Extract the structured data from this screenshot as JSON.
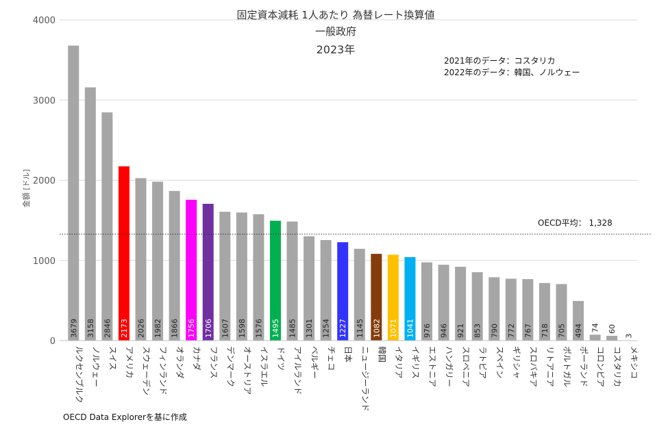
{
  "header": {
    "title_line1": "固定資本減耗 1人あたり 為替レート換算値",
    "title_line2": "一般政府",
    "title_line3": "2023年",
    "note_line1": "2021年のデータ：コスタリカ",
    "note_line2": "2022年のデータ：韓国、ノルウェー"
  },
  "footer": {
    "source": "OECD Data Explorerを基に作成"
  },
  "average": {
    "label": "OECD平均： 1,328",
    "value": 1328
  },
  "chart_data": {
    "type": "bar",
    "title": "固定資本減耗 1人あたり 為替レート換算値",
    "subtitle": "一般政府 2023年",
    "ylabel": "金額 [ドル]",
    "xlabel": "",
    "ylim": [
      0,
      4000
    ],
    "yticks": [
      0,
      1000,
      2000,
      3000,
      4000
    ],
    "grid": true,
    "categories": [
      "ルクセンブルク",
      "ノルウェー",
      "スイス",
      "アメリカ",
      "スウェーデン",
      "フィンランド",
      "オランダ",
      "カナダ",
      "フランス",
      "デンマーク",
      "オーストリア",
      "イスラエル",
      "ドイツ",
      "アイルランド",
      "ベルギー",
      "チェコ",
      "日本",
      "ニュージーランド",
      "韓国",
      "イタリア",
      "イギリス",
      "エストニア",
      "ハンガリー",
      "スロベニア",
      "ラトビア",
      "スペイン",
      "ギリシャ",
      "スロバキア",
      "リトアニア",
      "ポルトガル",
      "ポーランド",
      "コロンビア",
      "コスタリカ",
      "メキシコ"
    ],
    "values": [
      3679,
      3158,
      2846,
      2173,
      2026,
      1982,
      1866,
      1756,
      1706,
      1607,
      1598,
      1576,
      1495,
      1485,
      1301,
      1254,
      1227,
      1145,
      1082,
      1071,
      1041,
      976,
      946,
      921,
      853,
      790,
      772,
      767,
      718,
      705,
      494,
      74,
      60,
      3
    ],
    "colors": [
      "#a6a6a6",
      "#a6a6a6",
      "#a6a6a6",
      "#ff0000",
      "#a6a6a6",
      "#a6a6a6",
      "#a6a6a6",
      "#ff00ff",
      "#7030a0",
      "#a6a6a6",
      "#a6a6a6",
      "#a6a6a6",
      "#00b050",
      "#a6a6a6",
      "#a6a6a6",
      "#a6a6a6",
      "#3333ff",
      "#a6a6a6",
      "#843c0c",
      "#ffc000",
      "#00b0f0",
      "#a6a6a6",
      "#a6a6a6",
      "#a6a6a6",
      "#a6a6a6",
      "#a6a6a6",
      "#a6a6a6",
      "#a6a6a6",
      "#a6a6a6",
      "#a6a6a6",
      "#a6a6a6",
      "#a6a6a6",
      "#a6a6a6",
      "#a6a6a6"
    ],
    "reference_line": {
      "value": 1328,
      "style": "dotted"
    }
  }
}
